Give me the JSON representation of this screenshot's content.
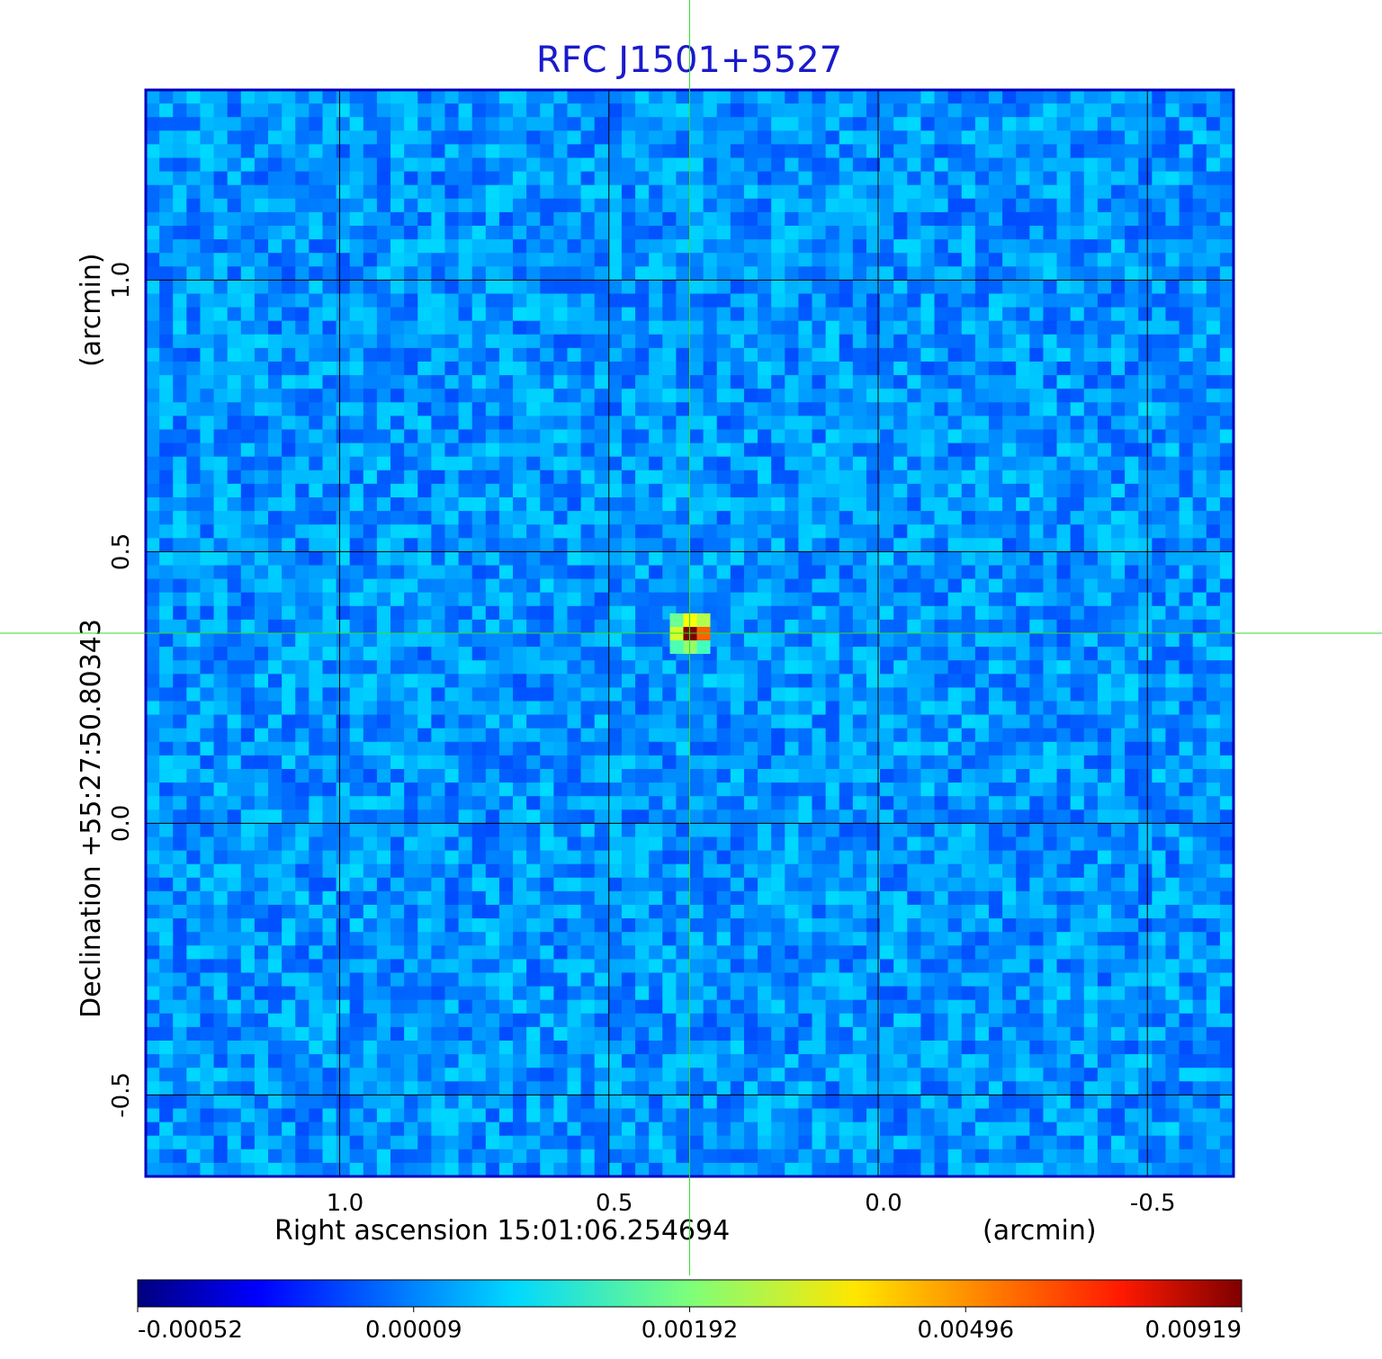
{
  "chart_data": {
    "type": "heatmap",
    "title": "RFC J1501+5527",
    "xlabel": "Right ascension  15:01:06.254694",
    "xunit": "(arcmin)",
    "ylabel": "Declination  +55:27:50.80343",
    "yunit": "(arcmin)",
    "x_ticks": [
      "1.0",
      "0.5",
      "0.0",
      "-0.5"
    ],
    "y_ticks": [
      "1.0",
      "0.5",
      "0.0",
      "-0.5"
    ],
    "x_tick_values": [
      1.0,
      0.5,
      0.0,
      -0.5
    ],
    "y_tick_values": [
      1.0,
      0.5,
      0.0,
      -0.5
    ],
    "xlim": [
      1.36,
      -0.66
    ],
    "ylim": [
      -0.65,
      1.35
    ],
    "grid": true,
    "crosshair": {
      "x": 0.35,
      "y": 0.35
    },
    "source_peak": {
      "x": 0.35,
      "y": 0.35,
      "value": 0.00919
    },
    "colorbar": {
      "ticks": [
        "-0.00052",
        "0.00009",
        "0.00192",
        "0.00496",
        "0.00919"
      ],
      "colormap": "jet"
    }
  },
  "colors": {
    "title": "#1a1acc",
    "frame": "#0000bb",
    "grid": "#000000",
    "crosshair": "#33dd33"
  }
}
